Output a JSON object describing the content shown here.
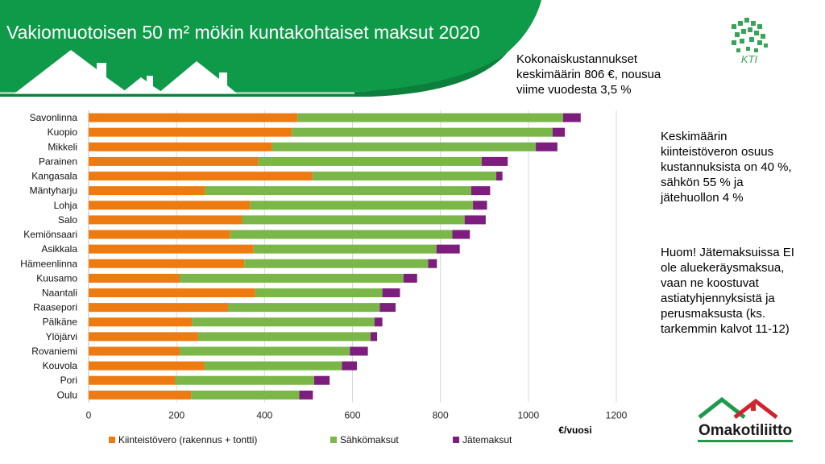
{
  "slide": {
    "title": "Vakiomuotoisen 50 m² mökin kuntakohtaiset maksut 2020",
    "note_total": [
      "Kokonaiskustannukset",
      "keskimäärin 806 €, nousua",
      "viime vuodesta 3,5 %"
    ],
    "note_share": [
      "Keskimäärin",
      "kiinteistöveron osuus",
      "kustannuksista on 40 %,",
      "sähkön 55 % ja",
      "jätehuollon 4 %"
    ],
    "note_waste": [
      "Huom! Jätemaksuissa EI",
      "ole aluekeräysmaksua,",
      "vaan ne koostuvat",
      "astiatyhjennyksistä ja",
      "perusmaksusta (ks.",
      "tarkemmin kalvot 11-12)"
    ],
    "logo_kti": "KTI",
    "logo_okl": "Omakotiliitto",
    "colors": {
      "banner": "#0e9a48",
      "property_tax": "#ee7b11",
      "electricity": "#7ab648",
      "waste": "#7d1e7e"
    }
  },
  "chart_data": {
    "type": "bar",
    "orientation": "horizontal",
    "stacked": true,
    "categories": [
      "Savonlinna",
      "Kuopio",
      "Mikkeli",
      "Parainen",
      "Kangasala",
      "Mäntyharju",
      "Lohja",
      "Salo",
      "Kemiönsaari",
      "Asikkala",
      "Hämeenlinna",
      "Kuusamo",
      "Naantali",
      "Raasepori",
      "Pälkäne",
      "Ylöjärvi",
      "Rovaniemi",
      "Kouvola",
      "Pori",
      "Oulu"
    ],
    "series": [
      {
        "name": "Kiinteistövero (rakennus + tontti)",
        "color": "#ee7b11",
        "values": [
          475,
          462,
          417,
          386,
          509,
          265,
          367,
          349,
          322,
          375,
          354,
          207,
          379,
          317,
          235,
          249,
          207,
          263,
          197,
          233
        ]
      },
      {
        "name": "Sähkömaksut",
        "color": "#7ab648",
        "values": [
          604,
          593,
          600,
          508,
          418,
          605,
          507,
          506,
          505,
          416,
          418,
          509,
          289,
          345,
          415,
          392,
          387,
          313,
          316,
          246
        ]
      },
      {
        "name": "Jätemaksut",
        "color": "#7d1e7e",
        "values": [
          40,
          28,
          49,
          59,
          14,
          43,
          32,
          48,
          40,
          53,
          20,
          31,
          40,
          36,
          18,
          15,
          41,
          34,
          35,
          31
        ]
      }
    ],
    "xlim": [
      0,
      1200
    ],
    "xticks": [
      0,
      200,
      400,
      600,
      800,
      1000,
      1200
    ],
    "xlabel": "€/vuosi",
    "grid": "vertical",
    "legend": "bottom"
  }
}
